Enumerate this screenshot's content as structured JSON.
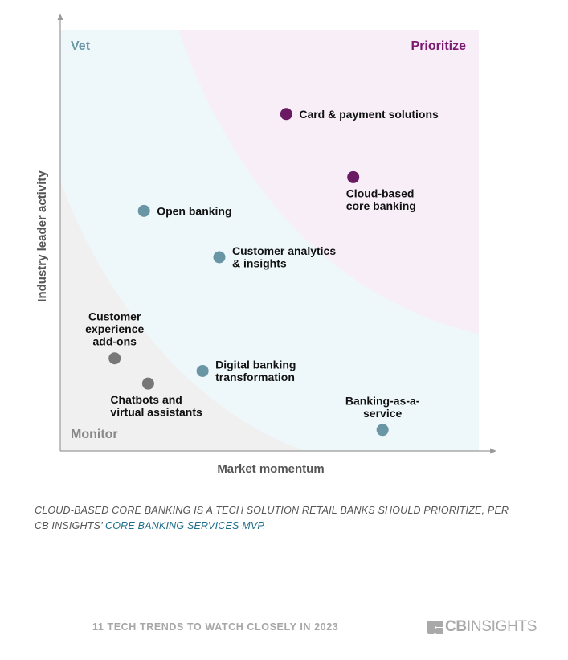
{
  "chart_data": {
    "type": "scatter",
    "xlabel": "Market momentum",
    "ylabel": "Industry leader activity",
    "xlim": [
      0,
      100
    ],
    "ylim": [
      0,
      100
    ],
    "quadrants": {
      "vet": "Vet",
      "prioritize": "Prioritize",
      "monitor": "Monitor"
    },
    "points": [
      {
        "label": "Card & payment solutions",
        "x": 54,
        "y": 80,
        "group": "prioritize",
        "label_pos": "right"
      },
      {
        "label": "Cloud-based core banking",
        "x": 70,
        "y": 65,
        "group": "prioritize",
        "label_pos": "below"
      },
      {
        "label": "Open banking",
        "x": 20,
        "y": 57,
        "group": "vet",
        "label_pos": "right"
      },
      {
        "label": "Customer analytics & insights",
        "x": 38,
        "y": 46,
        "group": "vet",
        "label_pos": "right"
      },
      {
        "label": "Digital banking transformation",
        "x": 34,
        "y": 19,
        "group": "vet",
        "label_pos": "right"
      },
      {
        "label": "Banking-as-a-service",
        "x": 77,
        "y": 5,
        "group": "vet",
        "label_pos": "above"
      },
      {
        "label": "Customer experience add-ons",
        "x": 13,
        "y": 22,
        "group": "monitor",
        "label_pos": "above"
      },
      {
        "label": "Chatbots and virtual assistants",
        "x": 21,
        "y": 16,
        "group": "monitor",
        "label_pos": "below"
      }
    ],
    "colors": {
      "prioritize": "#6a1a62",
      "vet": "#6896a4",
      "monitor": "#777777",
      "prioritize_zone": "#f8eef8",
      "vet_zone": "#eef7fa",
      "monitor_zone": "#f0f0f0",
      "vet_label": "#6d98a6",
      "prioritize_label": "#7b1a70",
      "monitor_label": "#888888"
    }
  },
  "caption": {
    "text": "CLOUD-BASED CORE BANKING IS A TECH SOLUTION RETAIL BANKS SHOULD PRIORITIZE, PER CB INSIGHTS’ ",
    "link": "CORE BANKING SERVICES MVP",
    "end": "."
  },
  "footer": {
    "left": "11 TECH TRENDS TO WATCH CLOSELY IN 2023",
    "logo_bold": "CB",
    "logo_light": "INSIGHTS",
    "logo_icon": "cb-insights-logo-icon"
  }
}
